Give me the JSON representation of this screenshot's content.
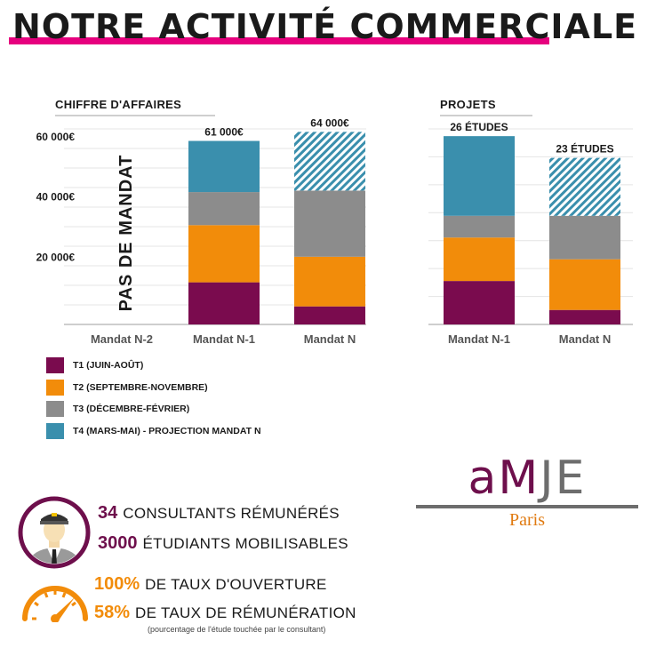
{
  "title": "NOTRE ACTIVITÉ COMMERCIALE",
  "colors": {
    "t1": "#7a0b4e",
    "t2": "#f28c0a",
    "t3": "#8c8c8c",
    "t4": "#3a8fad",
    "accent": "#e6007e",
    "logo_purple": "#6e0f4c",
    "logo_gray": "#6d6d6d",
    "logo_orange": "#e07a10"
  },
  "legend": [
    {
      "label": "T1 (JUIN-AOÛT)",
      "color": "#7a0b4e",
      "pattern": false
    },
    {
      "label": "T2 (SEPTEMBRE-NOVEMBRE)",
      "color": "#f28c0a",
      "pattern": false
    },
    {
      "label": "T3 (DÉCEMBRE-FÉVRIER)",
      "color": "#8c8c8c",
      "pattern": false
    },
    {
      "label": "T4 (MARS-MAI) - PROJECTION MANDAT N",
      "color": "#3a8fad",
      "pattern": false
    }
  ],
  "chart_data": [
    {
      "type": "bar",
      "stacked": true,
      "title": "CHIFFRE D'AFFAIRES",
      "categories": [
        "Mandat N-2",
        "Mandat N-1",
        "Mandat N"
      ],
      "yticks": [
        "20 000€",
        "40 000€",
        "60 000€"
      ],
      "ylim": [
        0,
        65000
      ],
      "annotation": "PAS DE MANDAT",
      "totals_labels": [
        "",
        "61 000€",
        "64 000€"
      ],
      "series": [
        {
          "name": "T1 (JUIN-AOÛT)",
          "values": [
            0,
            14000,
            6000
          ]
        },
        {
          "name": "T2 (SEPTEMBRE-NOVEMBRE)",
          "values": [
            0,
            19000,
            16500
          ]
        },
        {
          "name": "T3 (DÉCEMBRE-FÉVRIER)",
          "values": [
            0,
            11000,
            22000
          ]
        },
        {
          "name": "T4 (MARS-MAI) - PROJECTION MANDAT N",
          "values": [
            0,
            17000,
            19500
          ]
        }
      ],
      "projection_hatched": [
        false,
        false,
        true
      ]
    },
    {
      "type": "bar",
      "stacked": true,
      "title": "PROJETS",
      "categories": [
        "Mandat N-1",
        "Mandat N"
      ],
      "ylim": [
        0,
        27
      ],
      "totals_labels": [
        "26 ÉTUDES",
        "23 ÉTUDES"
      ],
      "series": [
        {
          "name": "T1 (JUIN-AOÛT)",
          "values": [
            6,
            2
          ]
        },
        {
          "name": "T2 (SEPTEMBRE-NOVEMBRE)",
          "values": [
            6,
            7
          ]
        },
        {
          "name": "T3 (DÉCEMBRE-FÉVRIER)",
          "values": [
            3,
            6
          ]
        },
        {
          "name": "T4 (MARS-MAI) - PROJECTION MANDAT N",
          "values": [
            11,
            8
          ]
        }
      ],
      "projection_hatched": [
        false,
        true
      ]
    }
  ],
  "logo": {
    "word": "aMJE",
    "city": "Paris"
  },
  "stats": [
    {
      "num": "34",
      "text": "CONSULTANTS RÉMUNÉRÉS",
      "color": "#6e0f4c"
    },
    {
      "num": "3000",
      "text": "ÉTUDIANTS MOBILISABLES",
      "color": "#6e0f4c"
    },
    {
      "num": "100%",
      "text": "DE TAUX D'OUVERTURE",
      "color": "#f28c0a"
    },
    {
      "num": "58%",
      "text": "DE TAUX DE RÉMUNÉRATION",
      "color": "#f28c0a"
    }
  ],
  "note": "(pourcentage de l'étude touchée par le consultant)",
  "icons": [
    "consultant-avatar-icon",
    "gauge-icon"
  ]
}
